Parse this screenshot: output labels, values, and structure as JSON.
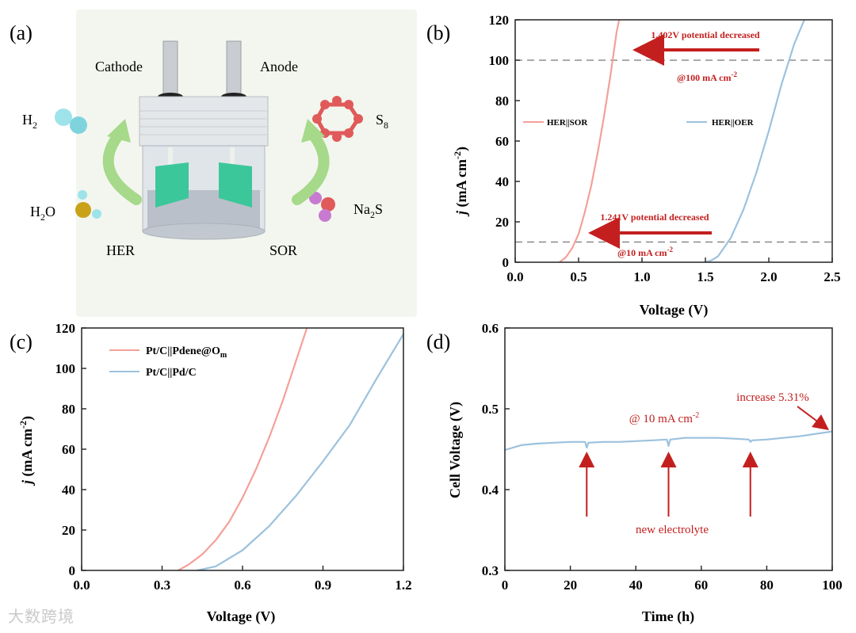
{
  "panels": {
    "a": {
      "label": "(a)",
      "cathode": "Cathode",
      "anode": "Anode",
      "h2": "H",
      "h2_sub": "2",
      "h2o_a": "H",
      "h2o_sub": "2",
      "h2o_b": "O",
      "s8": "S",
      "s8_sub": "8",
      "na2s_a": "Na",
      "na2s_sub": "2",
      "na2s_b": "S",
      "her": "HER",
      "sor": "SOR",
      "colors": {
        "bg": "#f3f6ee",
        "arrow": "#a6d98a",
        "h2": "#9ee3ea",
        "s8": "#e05a5a",
        "na2s": "#c77ad0",
        "water_o": "#c9a21a",
        "electrode": "#3cc79a"
      }
    },
    "b": {
      "label": "(b)",
      "ylabel_j": "j",
      "ylabel_unit": "(mA cm",
      "ylabel_sup": "-2",
      "ylabel_close": ")",
      "xlabel": "Voltage (V)",
      "legend_sor": "HER||SOR",
      "legend_oer": "HER||OER",
      "ann_top": "1.402V potential decreased",
      "ann_top_at": "@100 mA cm",
      "ann_top_sup": "-2",
      "ann_bot": "1.241V potential decreased",
      "ann_bot_at": "@10 mA cm",
      "ann_bot_sup": "-2"
    },
    "c": {
      "label": "(c)",
      "ylabel_j": "j",
      "ylabel_unit": "(mA cm",
      "ylabel_sup": "-2",
      "ylabel_close": ")",
      "xlabel": "Voltage (V)",
      "legend_1": "Pt/C||Pdene@O",
      "legend_1_sub": "m",
      "legend_2": "Pt/C||Pd/C"
    },
    "d": {
      "label": "(d)",
      "ylabel": "Cell Voltage (V)",
      "xlabel": "Time (h)",
      "ann_current": "@ 10 mA cm",
      "ann_current_sup": "-2",
      "ann_increase": "increase 5.31%",
      "ann_electrolyte": "new electrolyte"
    }
  },
  "watermark": "大数跨境",
  "chart_data": [
    {
      "panel": "b",
      "type": "line",
      "xlim": [
        0.0,
        2.5
      ],
      "ylim": [
        0,
        120
      ],
      "xticks": [
        "0.0",
        "0.5",
        "1.0",
        "1.5",
        "2.0",
        "2.5"
      ],
      "yticks": [
        "0",
        "20",
        "40",
        "60",
        "80",
        "100",
        "120"
      ],
      "reference_lines_y": [
        10,
        100
      ],
      "series": [
        {
          "name": "HER||SOR",
          "color": "#f4a09a",
          "x": [
            0.35,
            0.4,
            0.45,
            0.5,
            0.55,
            0.6,
            0.65,
            0.7,
            0.75,
            0.8,
            0.82
          ],
          "y": [
            0,
            2.5,
            7,
            14,
            25,
            38,
            54,
            72,
            92,
            114,
            120
          ]
        },
        {
          "name": "HER||OER",
          "color": "#9cc2de",
          "x": [
            1.5,
            1.55,
            1.6,
            1.7,
            1.8,
            1.9,
            2.0,
            2.1,
            2.2,
            2.28
          ],
          "y": [
            0,
            1,
            3,
            12,
            26,
            44,
            65,
            88,
            108,
            120
          ]
        }
      ]
    },
    {
      "panel": "c",
      "type": "line",
      "xlim": [
        0.0,
        1.2
      ],
      "ylim": [
        0,
        120
      ],
      "xticks": [
        "0.0",
        "0.3",
        "0.6",
        "0.9",
        "1.2"
      ],
      "yticks": [
        "0",
        "20",
        "40",
        "60",
        "80",
        "100",
        "120"
      ],
      "series": [
        {
          "name": "Pt/C||Pdene@Om",
          "color": "#f4a09a",
          "x": [
            0.36,
            0.4,
            0.45,
            0.5,
            0.55,
            0.6,
            0.65,
            0.7,
            0.75,
            0.8,
            0.84
          ],
          "y": [
            0,
            3,
            8,
            15,
            24,
            36,
            50,
            66,
            84,
            104,
            120
          ]
        },
        {
          "name": "Pt/C||Pd/C",
          "color": "#9cc2de",
          "x": [
            0.43,
            0.5,
            0.6,
            0.7,
            0.8,
            0.9,
            1.0,
            1.1,
            1.2
          ],
          "y": [
            0,
            2,
            10,
            22,
            37,
            54,
            72,
            95,
            117
          ]
        }
      ]
    },
    {
      "panel": "d",
      "type": "line",
      "xlim": [
        0,
        100
      ],
      "ylim": [
        0.3,
        0.6
      ],
      "xticks": [
        "0",
        "20",
        "40",
        "60",
        "80",
        "100"
      ],
      "yticks": [
        "0.3",
        "0.4",
        "0.5",
        "0.6"
      ],
      "markers_x": [
        25,
        50,
        75
      ],
      "series": [
        {
          "name": "Cell voltage",
          "color": "#9cc2de",
          "x": [
            0,
            5,
            10,
            15,
            20,
            24.5,
            25,
            25.5,
            30,
            35,
            40,
            45,
            49.5,
            50,
            50.5,
            55,
            60,
            65,
            70,
            74.5,
            75,
            75.5,
            80,
            85,
            90,
            95,
            100
          ],
          "y": [
            0.449,
            0.455,
            0.457,
            0.458,
            0.459,
            0.459,
            0.452,
            0.458,
            0.459,
            0.459,
            0.46,
            0.461,
            0.462,
            0.454,
            0.462,
            0.464,
            0.464,
            0.464,
            0.463,
            0.462,
            0.459,
            0.461,
            0.462,
            0.464,
            0.466,
            0.469,
            0.472
          ]
        }
      ]
    }
  ]
}
